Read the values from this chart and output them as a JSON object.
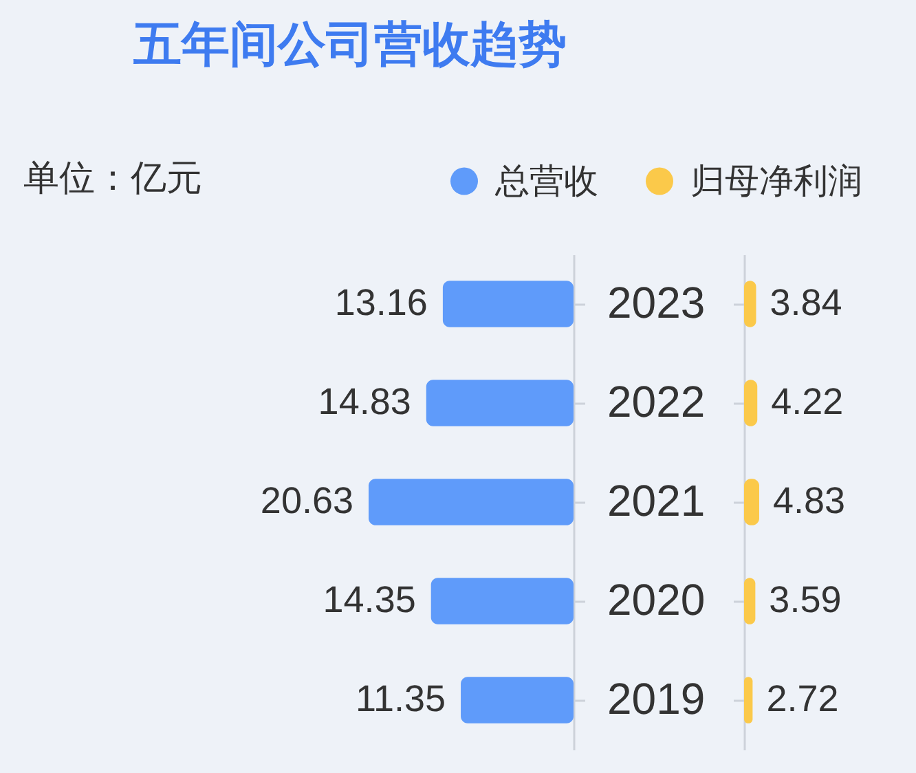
{
  "chart_data": [
    {
      "type": "bar",
      "title": "五年间公司营收趋势",
      "annotations": [
        "单位：亿元"
      ],
      "orientation": "horizontal",
      "categories": [
        "2023",
        "2022",
        "2021",
        "2020",
        "2019"
      ],
      "series": [
        {
          "name": "总营收",
          "color": "#5f9bfa",
          "values": [
            13.16,
            14.83,
            20.63,
            14.35,
            11.35
          ]
        }
      ],
      "data_labels": true,
      "legend": "top right"
    },
    {
      "type": "bar",
      "orientation": "horizontal",
      "categories": [
        "2023",
        "2022",
        "2021",
        "2020",
        "2019"
      ],
      "series": [
        {
          "name": "归母净利润",
          "color": "#fbc94a",
          "values": [
            3.84,
            4.22,
            4.83,
            3.59,
            2.72
          ]
        }
      ],
      "data_labels": true,
      "legend": "top right",
      "tick_labels": false
    }
  ]
}
